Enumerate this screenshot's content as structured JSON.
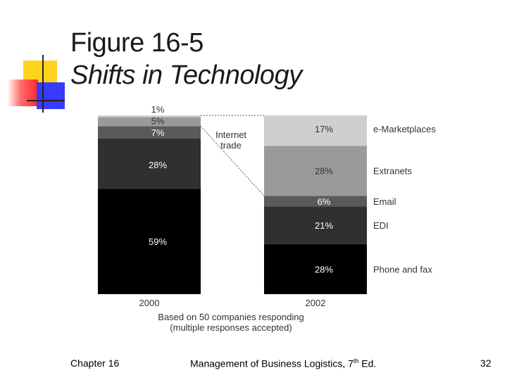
{
  "title": "Figure 16-5",
  "subtitle": "Shifts in Technology",
  "chart_data": {
    "type": "bar",
    "stacked": true,
    "categories": [
      "2000",
      "2002"
    ],
    "series": [
      {
        "name": "Phone and fax",
        "values": [
          59,
          28
        ],
        "labels": [
          "59%",
          "28%"
        ],
        "color": "#000000"
      },
      {
        "name": "EDI",
        "values": [
          28,
          21
        ],
        "labels": [
          "28%",
          "21%"
        ],
        "color": "#303030"
      },
      {
        "name": "Email",
        "values": [
          7,
          6
        ],
        "labels": [
          "7%",
          "6%"
        ],
        "color": "#5a5a5a"
      },
      {
        "name": "Extranets",
        "values": [
          5,
          28
        ],
        "labels": [
          "5%",
          "28%"
        ],
        "color": "#9a9a9a"
      },
      {
        "name": "e-Marketplaces",
        "values": [
          1,
          17
        ],
        "labels": [
          "1%",
          "17%"
        ],
        "color": "#cfcfcf"
      }
    ],
    "legend_labels": [
      "e-Marketplaces",
      "Extranets",
      "Email",
      "EDI",
      "Phone and fax"
    ],
    "annotation": "Internet trade",
    "note_line1": "Based on 50 companies responding",
    "note_line2": "(multiple responses accepted)"
  },
  "footer": {
    "chapter": "Chapter 16",
    "book": "Management of Business Logistics, 7",
    "book_sup": "th",
    "book_end": " Ed.",
    "page": "32"
  },
  "colors": {
    "accent_yellow": "#ffd21e",
    "accent_red": "#ff2a2a",
    "accent_blue": "#3a3aff"
  }
}
